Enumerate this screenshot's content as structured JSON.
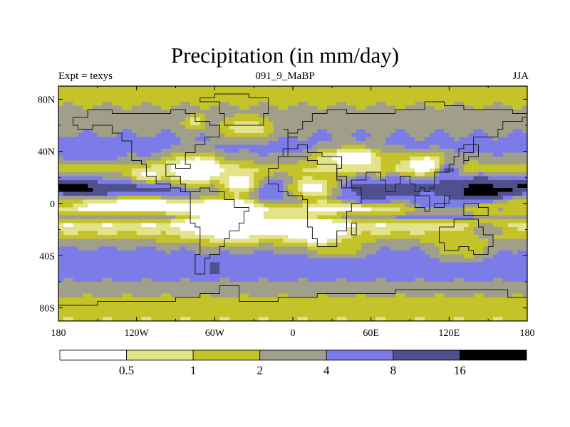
{
  "figure": {
    "title": "Precipitation (in mm/day)",
    "left_label": "Expt = texys",
    "center_label": "091_9_MaBP",
    "right_label": "JJA"
  },
  "chart_data": {
    "type": "heatmap",
    "title": "Precipitation (in mm/day)",
    "xlabel": "",
    "ylabel": "",
    "xlim": [
      -180,
      180
    ],
    "ylim": [
      -90,
      90
    ],
    "x_ticks": [
      -180,
      -120,
      -60,
      0,
      60,
      120,
      180
    ],
    "x_tick_labels": [
      "180",
      "120W",
      "60W",
      "0",
      "60E",
      "120E",
      "180"
    ],
    "y_ticks": [
      80,
      40,
      0,
      -40,
      -80
    ],
    "y_tick_labels": [
      "80N",
      "40N",
      "0",
      "40S",
      "80S"
    ],
    "colorbar": {
      "levels": [
        0.5,
        1,
        2,
        4,
        8,
        16
      ],
      "level_labels": [
        "0.5",
        "1",
        "2",
        "4",
        "8",
        "16"
      ],
      "colors": [
        "#ffffff",
        "#e3e38a",
        "#c4c42a",
        "#a0a08a",
        "#7c7ce8",
        "#50508e",
        "#000000"
      ]
    },
    "field": {
      "zonal_bands": [
        {
          "lat": 90,
          "value": 1.5
        },
        {
          "lat": 80,
          "value": 1.6
        },
        {
          "lat": 70,
          "value": 2.6
        },
        {
          "lat": 60,
          "value": 3.3
        },
        {
          "lat": 50,
          "value": 4.2
        },
        {
          "lat": 42,
          "value": 5.0
        },
        {
          "lat": 34,
          "value": 3.0
        },
        {
          "lat": 26,
          "value": 1.2
        },
        {
          "lat": 18,
          "value": 6.0
        },
        {
          "lat": 11,
          "value": 14.0
        },
        {
          "lat": 5,
          "value": 7.0
        },
        {
          "lat": 0,
          "value": 0.6
        },
        {
          "lat": -5,
          "value": 0.4
        },
        {
          "lat": -10,
          "value": 4.5
        },
        {
          "lat": -16,
          "value": 0.5
        },
        {
          "lat": -26,
          "value": 1.5
        },
        {
          "lat": -34,
          "value": 4.0
        },
        {
          "lat": -45,
          "value": 6.0
        },
        {
          "lat": -55,
          "value": 5.0
        },
        {
          "lat": -65,
          "value": 3.2
        },
        {
          "lat": -75,
          "value": 1.5
        },
        {
          "lat": -85,
          "value": 1.2
        },
        {
          "lat": -90,
          "value": 1.0
        }
      ],
      "anomalies": [
        {
          "lon": -75,
          "lat": 25,
          "dlon": 20,
          "dlat": 12,
          "value": 0.1
        },
        {
          "lon": -110,
          "lat": 22,
          "dlon": 15,
          "dlat": 6,
          "value": 0.4
        },
        {
          "lon": -40,
          "lat": 15,
          "dlon": 15,
          "dlat": 10,
          "value": 0.2
        },
        {
          "lon": -35,
          "lat": 58,
          "dlon": 18,
          "dlat": 8,
          "value": 0.5
        },
        {
          "lon": -75,
          "lat": 62,
          "dlon": 8,
          "dlat": 5,
          "value": 0.6
        },
        {
          "lon": 45,
          "lat": 35,
          "dlon": 25,
          "dlat": 8,
          "value": 0.2
        },
        {
          "lon": 105,
          "lat": 30,
          "dlon": 20,
          "dlat": 8,
          "value": 0.2
        },
        {
          "lon": -10,
          "lat": 5,
          "dlon": 25,
          "dlat": 8,
          "value": 10.0
        },
        {
          "lon": 15,
          "lat": 12,
          "dlon": 20,
          "dlat": 10,
          "value": 0.3
        },
        {
          "lon": 60,
          "lat": 3,
          "dlon": 20,
          "dlat": 4,
          "value": 10.0
        },
        {
          "lon": 110,
          "lat": 0,
          "dlon": 30,
          "dlat": 10,
          "value": 6.0
        },
        {
          "lon": 145,
          "lat": 10,
          "dlon": 25,
          "dlat": 10,
          "value": 20.0
        },
        {
          "lon": 120,
          "lat": 25,
          "dlon": 10,
          "dlat": 10,
          "value": 9.0
        },
        {
          "lon": -50,
          "lat": -12,
          "dlon": 30,
          "dlat": 15,
          "value": 0.1
        },
        {
          "lon": -10,
          "lat": -18,
          "dlon": 25,
          "dlat": 8,
          "value": 0.2
        },
        {
          "lon": 20,
          "lat": -22,
          "dlon": 20,
          "dlat": 12,
          "value": 0.2
        },
        {
          "lon": -60,
          "lat": -50,
          "dlon": 4,
          "dlat": 5,
          "value": 12.0
        },
        {
          "lon": 130,
          "lat": -35,
          "dlon": 20,
          "dlat": 8,
          "value": 1.0
        },
        {
          "lon": 150,
          "lat": -20,
          "dlon": 15,
          "dlat": 6,
          "value": 4.0
        },
        {
          "lon": 160,
          "lat": -5,
          "dlon": 15,
          "dlat": 5,
          "value": 2.0
        },
        {
          "lon": 40,
          "lat": -35,
          "dlon": 18,
          "dlat": 6,
          "value": 1.5
        },
        {
          "lon": -150,
          "lat": 40,
          "dlon": 25,
          "dlat": 8,
          "value": 6.0
        },
        {
          "lon": -170,
          "lat": 12,
          "dlon": 20,
          "dlat": 4,
          "value": 20.0
        },
        {
          "lon": -120,
          "lat": 0,
          "dlon": 30,
          "dlat": 5,
          "value": 0.3
        },
        {
          "lon": 180,
          "lat": 0,
          "dlon": 15,
          "dlat": 6,
          "value": 1.5
        }
      ]
    }
  }
}
